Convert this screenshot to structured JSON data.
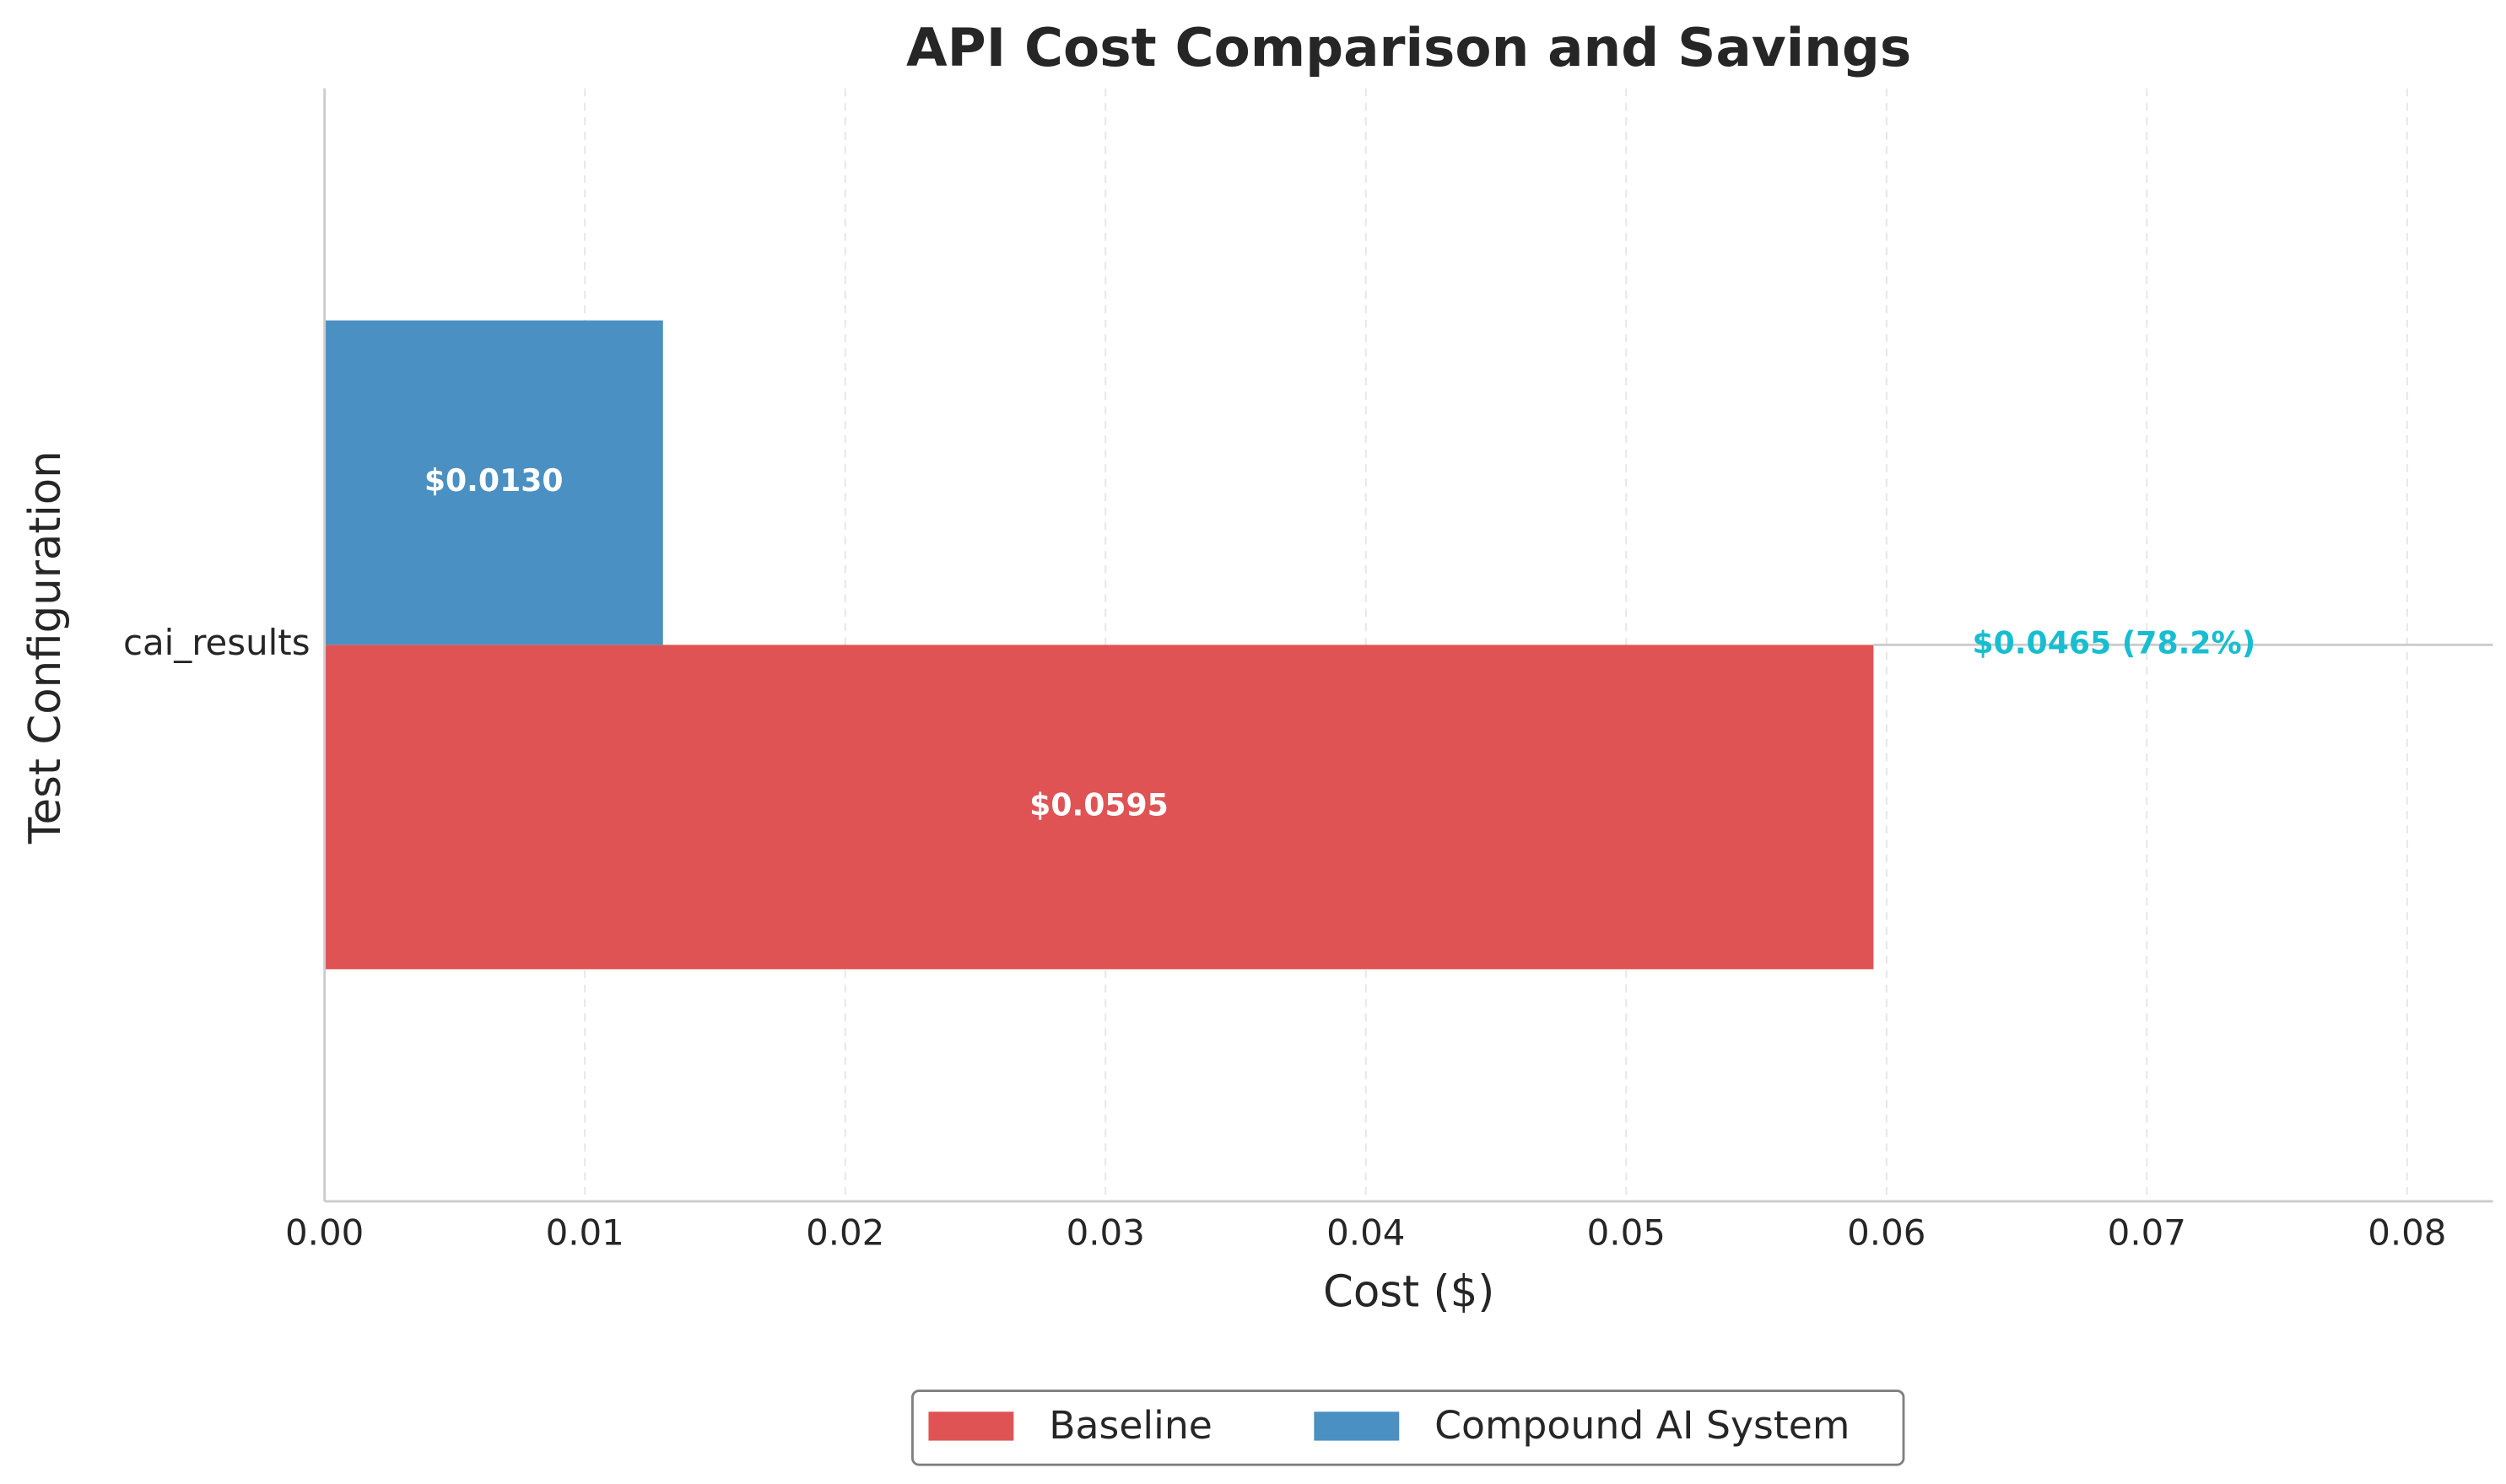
{
  "chart_data": {
    "type": "bar",
    "orientation": "horizontal",
    "title": "API Cost Comparison and Savings",
    "xlabel": "Cost ($)",
    "ylabel": "Test Configuration",
    "categories": [
      "cai_results"
    ],
    "series": [
      {
        "name": "Baseline",
        "color": "#e05355",
        "values": [
          0.0595
        ],
        "value_labels": [
          "$0.0595"
        ]
      },
      {
        "name": "Compound AI System",
        "color": "#4a90c2",
        "values": [
          0.013
        ],
        "value_labels": [
          "$0.0130"
        ]
      }
    ],
    "annotations": [
      {
        "text": "$0.0465 (78.2%)",
        "color": "#17becf"
      }
    ],
    "xlim": [
      0,
      0.0833
    ],
    "xticks": [
      {
        "value": 0,
        "label": "0.00"
      },
      {
        "value": 0.01,
        "label": "0.01"
      },
      {
        "value": 0.02,
        "label": "0.02"
      },
      {
        "value": 0.03,
        "label": "0.03"
      },
      {
        "value": 0.04,
        "label": "0.04"
      },
      {
        "value": 0.05,
        "label": "0.05"
      },
      {
        "value": 0.06,
        "label": "0.06"
      },
      {
        "value": 0.07,
        "label": "0.07"
      },
      {
        "value": 0.08,
        "label": "0.08"
      }
    ],
    "grid": true,
    "legend": "lower center"
  }
}
